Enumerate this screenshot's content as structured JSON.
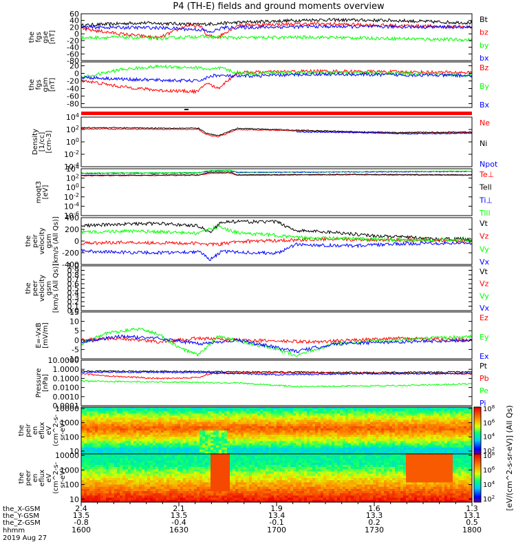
{
  "chart_data": {
    "type": "line",
    "title": "P4 (TH-E) fields and ground moments overview",
    "colors": {
      "black": "#000000",
      "red": "#ff0000",
      "green": "#00ff00",
      "blue": "#0000ff"
    },
    "x_ticks": {
      "hhmm": [
        "1600",
        "1630",
        "1700",
        "1730",
        "1800"
      ],
      "the_X-GSM": [
        "2.4",
        "2.1",
        "1.9",
        "1.6",
        "1.3"
      ],
      "the_Y-GSM": [
        "13.5",
        "13.5",
        "13.4",
        "13.3",
        "13.1"
      ],
      "the_Z-GSM": [
        "-0.8",
        "-0.4",
        "-0.1",
        "0.2",
        "0.5"
      ]
    },
    "x_row_labels": [
      "the_X-GSM",
      "the_Y-GSM",
      "the_Z-GSM",
      "hhmm"
    ],
    "date": "2019 Aug 27",
    "panels": [
      {
        "id": "fgs_gse",
        "ylabel": [
          "the",
          "fgs",
          "gse",
          "[nT]"
        ],
        "scale": "linear",
        "ylim": [
          -80,
          60
        ],
        "ticks": [
          "60",
          "40",
          "20",
          "0",
          "-20",
          "-40",
          "-60",
          "-80"
        ],
        "tick_values": [
          60,
          40,
          20,
          0,
          -20,
          -40,
          -60,
          -80
        ],
        "series": [
          {
            "name": "Bt",
            "color": "black",
            "segments": [
              [
                0,
                25,
                0.05,
                28,
                0.15,
                33,
                0.25,
                30,
                0.3,
                28,
                0.42,
                35,
                0.6,
                42,
                0.8,
                40,
                0.9,
                36,
                1,
                33
              ]
            ]
          },
          {
            "name": "bz",
            "color": "red",
            "segments": [
              [
                0,
                15,
                0.1,
                0,
                0.2,
                -12,
                0.27,
                25,
                0.31,
                22,
                0.32,
                -5,
                0.35,
                -10,
                0.4,
                26,
                0.6,
                30,
                0.8,
                25,
                1,
                20
              ]
            ]
          },
          {
            "name": "by",
            "color": "green",
            "segments": [
              [
                0,
                -12,
                0.1,
                -10,
                0.2,
                -14,
                0.3,
                -8,
                0.4,
                -12,
                0.6,
                -10,
                0.8,
                -14,
                1,
                -18
              ]
            ]
          },
          {
            "name": "bx",
            "color": "blue",
            "segments": [
              [
                0,
                20,
                0.2,
                18,
                0.31,
                12,
                0.33,
                4,
                0.36,
                18,
                0.6,
                22,
                1,
                20
              ]
            ]
          }
        ]
      },
      {
        "id": "fgs_gsm",
        "ylabel": [
          "the",
          "fgs",
          "gsm",
          "[nT]"
        ],
        "scale": "linear",
        "ylim": [
          -90,
          30
        ],
        "ticks": [
          "20",
          "0",
          "-20",
          "-40",
          "-60",
          "-80"
        ],
        "tick_values": [
          20,
          0,
          -20,
          -40,
          -60,
          -80
        ],
        "series": [
          {
            "name": "Bz",
            "color": "red",
            "segments": [
              [
                0,
                -18,
                0.1,
                -35,
                0.2,
                -45,
                0.3,
                -48,
                0.32,
                -25,
                0.35,
                -40,
                0.4,
                2,
                0.6,
                6,
                0.8,
                4,
                1,
                2
              ]
            ]
          },
          {
            "name": "By",
            "color": "green",
            "segments": [
              [
                0,
                -12,
                0.1,
                10,
                0.2,
                18,
                0.3,
                15,
                0.33,
                10,
                0.36,
                14,
                0.4,
                0,
                0.6,
                2,
                0.8,
                0,
                1,
                -5
              ]
            ]
          },
          {
            "name": "Bx",
            "color": "blue",
            "segments": [
              [
                0,
                -10,
                0.1,
                -15,
                0.2,
                -18,
                0.3,
                -20,
                0.34,
                -5,
                0.4,
                -8,
                0.6,
                -2,
                0.8,
                -4,
                1,
                -6
              ]
            ]
          }
        ]
      },
      {
        "id": "density",
        "ylabel": [
          "Density",
          "[1/cc]",
          "[cm-3]"
        ],
        "scale": "log",
        "ylim": [
          -4,
          4
        ],
        "ticks": [
          "10^4",
          "10^2",
          "10^0",
          "10^-2",
          "10^-4"
        ],
        "tick_values": [
          4,
          2,
          0,
          -2,
          -4
        ],
        "series": [
          {
            "name": "Ne",
            "color": "red",
            "segments": [
              [
                0,
                2.1,
                0.3,
                2.0,
                0.32,
                1.2,
                0.35,
                0.8,
                0.38,
                1.5,
                0.4,
                2.0,
                0.6,
                1.7,
                0.8,
                1.4,
                1,
                1.5
              ]
            ]
          },
          {
            "name": "Ni",
            "color": "black",
            "segments": [
              [
                0,
                2.3,
                0.3,
                2.2,
                0.32,
                1.4,
                0.35,
                1.0,
                0.38,
                1.7,
                0.4,
                2.2,
                0.6,
                1.8,
                0.8,
                1.5,
                1,
                1.6
              ]
            ]
          },
          {
            "name": "Npot",
            "color": "blue",
            "segments": [
              [
                0.55,
                1.6,
                0.7,
                1.5,
                0.85,
                1.3,
                1,
                1.4
              ]
            ]
          }
        ]
      },
      {
        "id": "temperature",
        "ylabel": [
          "moqt3",
          "[eV]"
        ],
        "scale": "log",
        "ylim": [
          -6,
          4
        ],
        "ticks": [
          "10^4",
          "10^2",
          "10^0",
          "10^-2",
          "10^-4",
          "10^-6"
        ],
        "tick_values": [
          4,
          2,
          0,
          -2,
          -4,
          -6
        ],
        "series": [
          {
            "name": "Te⊥",
            "color": "red",
            "segments": [
              [
                0,
                2.5,
                0.3,
                2.6,
                0.33,
                3.0,
                0.38,
                3.1,
                0.4,
                2.6,
                0.7,
                2.7,
                1,
                2.6
              ]
            ]
          },
          {
            "name": "Tell",
            "color": "black",
            "segments": [
              [
                0,
                2.6,
                0.3,
                2.7,
                0.33,
                3.2,
                0.38,
                3.3,
                0.4,
                2.7,
                0.7,
                2.8,
                1,
                2.7
              ]
            ]
          },
          {
            "name": "Ti⊥",
            "color": "blue",
            "segments": [
              [
                0,
                3.0,
                0.3,
                3.1,
                0.33,
                3.5,
                0.38,
                3.6,
                0.4,
                3.2,
                0.7,
                3.3,
                1,
                3.4
              ]
            ]
          },
          {
            "name": "Till",
            "color": "green",
            "segments": [
              [
                0,
                3.1,
                0.3,
                3.2,
                0.33,
                3.6,
                0.38,
                3.7,
                0.4,
                3.3,
                0.7,
                3.4,
                1,
                3.5
              ]
            ]
          }
        ]
      },
      {
        "id": "peir_velocity",
        "ylabel": [
          "the",
          "peir",
          "velocity",
          "gsm",
          "[km/s (All Qs)]"
        ],
        "scale": "linear",
        "ylim": [
          -400,
          400
        ],
        "ticks": [
          "400",
          "200",
          "0",
          "-200",
          "-400"
        ],
        "tick_values": [
          400,
          200,
          0,
          -200,
          -400
        ],
        "series": [
          {
            "name": "Vt",
            "color": "black",
            "segments": [
              [
                0,
                260,
                0.1,
                290,
                0.2,
                300,
                0.3,
                260,
                0.33,
                150,
                0.36,
                330,
                0.5,
                330,
                0.55,
                180,
                0.65,
                150,
                0.75,
                90,
                0.85,
                60,
                0.9,
                30,
                1,
                40
              ]
            ]
          },
          {
            "name": "Vz",
            "color": "red",
            "segments": [
              [
                0,
                -40,
                0.1,
                -20,
                0.2,
                -30,
                0.3,
                -40,
                0.35,
                -60,
                0.4,
                -10,
                0.6,
                30,
                0.8,
                20,
                1,
                0
              ]
            ]
          },
          {
            "name": "Vy",
            "color": "green",
            "segments": [
              [
                0,
                150,
                0.1,
                170,
                0.2,
                160,
                0.3,
                130,
                0.35,
                250,
                0.4,
                140,
                0.5,
                100,
                0.55,
                60,
                0.7,
                40,
                0.9,
                10,
                1,
                20
              ]
            ]
          },
          {
            "name": "Vx",
            "color": "blue",
            "segments": [
              [
                0,
                -170,
                0.1,
                -190,
                0.2,
                -200,
                0.3,
                -180,
                0.33,
                -310,
                0.36,
                -180,
                0.5,
                -210,
                0.55,
                -60,
                0.7,
                -80,
                0.85,
                -40,
                1,
                -30
              ]
            ]
          }
        ]
      },
      {
        "id": "peer_velocity",
        "ylabel": [
          "the",
          "peer",
          "velocity",
          "gsm",
          "[km/s (All Qs)]"
        ],
        "scale": "linear",
        "ylim": [
          0,
          1
        ],
        "ticks": [
          "1.0",
          "0.9",
          "0.8",
          "0.7",
          "0.6",
          "0.5",
          "0.4",
          "0.3",
          "0.2",
          "0.1",
          "0.0"
        ],
        "tick_values": [
          1,
          0.9,
          0.8,
          0.7,
          0.6,
          0.5,
          0.4,
          0.3,
          0.2,
          0.1,
          0
        ],
        "series": [
          {
            "name": "Vt",
            "color": "black",
            "segments": []
          },
          {
            "name": "Vz",
            "color": "red",
            "segments": []
          },
          {
            "name": "Vy",
            "color": "green",
            "segments": []
          },
          {
            "name": "Vx",
            "color": "blue",
            "segments": []
          }
        ]
      },
      {
        "id": "efield",
        "ylabel": [
          "E=-VxB",
          "[mV/m]"
        ],
        "scale": "linear",
        "ylim": [
          -10,
          15
        ],
        "ticks": [
          "15",
          "10",
          "5",
          "0",
          "-5",
          "-10"
        ],
        "tick_values": [
          15,
          10,
          5,
          0,
          -5,
          -10
        ],
        "series": [
          {
            "name": "Ez",
            "color": "red",
            "segments": [
              [
                0,
                0,
                0.1,
                1,
                0.2,
                -1,
                0.3,
                1,
                0.4,
                0,
                0.6,
                -1,
                0.8,
                1,
                1,
                0
              ]
            ]
          },
          {
            "name": "Ey",
            "color": "green",
            "segments": [
              [
                0,
                -2,
                0.07,
                4,
                0.15,
                6,
                0.2,
                3,
                0.25,
                -4,
                0.3,
                -8,
                0.35,
                2,
                0.5,
                -5,
                0.55,
                -8,
                0.65,
                -2,
                0.8,
                0,
                1,
                2
              ]
            ]
          },
          {
            "name": "Ex",
            "color": "blue",
            "segments": [
              [
                0,
                -1,
                0.1,
                2,
                0.2,
                1,
                0.3,
                -2,
                0.4,
                0,
                0.5,
                -4,
                0.55,
                -6,
                0.65,
                -2,
                0.8,
                -1,
                1,
                0
              ]
            ]
          }
        ]
      },
      {
        "id": "pressure",
        "ylabel": [
          "Pressure",
          "[nPa]"
        ],
        "scale": "log",
        "ylim": [
          -4,
          1
        ],
        "ticks": [
          "10.0000",
          "1.0000",
          "0.1000",
          "0.0100",
          "0.0010",
          "0.0001"
        ],
        "tick_values": [
          1,
          0,
          -1,
          -2,
          -3,
          -4
        ],
        "series": [
          {
            "name": "Pt",
            "color": "black",
            "segments": [
              [
                0,
                -0.2,
                0.3,
                -0.25,
                0.5,
                -0.3,
                0.7,
                -0.35,
                1,
                -0.3
              ]
            ]
          },
          {
            "name": "Pb",
            "color": "red",
            "segments": [
              [
                0,
                -0.5,
                0.1,
                -0.8,
                0.2,
                -1.0,
                0.3,
                -0.9,
                0.33,
                -0.5,
                0.4,
                -0.4,
                0.6,
                -0.4,
                1,
                -0.5
              ]
            ]
          },
          {
            "name": "Pe",
            "color": "green",
            "segments": [
              [
                0,
                -1.3,
                0.2,
                -1.4,
                0.4,
                -1.5,
                0.55,
                -1.9,
                0.8,
                -1.8,
                1,
                -1.6
              ]
            ]
          },
          {
            "name": "Pi",
            "color": "blue",
            "segments": [
              [
                0,
                -0.3,
                0.3,
                -0.35,
                0.5,
                -0.6,
                0.7,
                -0.5,
                1,
                -0.45
              ]
            ]
          }
        ]
      },
      {
        "id": "peir_eflux",
        "type": "heatmap",
        "ylabel": [
          "the",
          "peir",
          "en",
          "eflux",
          "eV",
          "(cm^2-s-",
          "sr-eV)"
        ],
        "scale": "log",
        "ylim": [
          0.8,
          4.1
        ],
        "ticks": [
          "10000",
          "1000",
          "100",
          "10"
        ],
        "tick_values": [
          4,
          3,
          2,
          1
        ],
        "colorbar": {
          "ticks": [
            "10^8",
            "10^6",
            "10^4",
            "10^2"
          ],
          "tick_values": [
            8,
            6,
            4,
            2
          ],
          "vmin": 1.5,
          "vmax": 8.2
        }
      },
      {
        "id": "peer_eflux",
        "type": "heatmap",
        "ylabel": [
          "the",
          "peer",
          "en",
          "eflux",
          "eV",
          "(cm^2-s-",
          "sr-eV)"
        ],
        "scale": "log",
        "ylim": [
          0.8,
          4.1
        ],
        "ticks": [
          "10000",
          "1000",
          "100",
          "10"
        ],
        "tick_values": [
          4,
          3,
          2,
          1
        ],
        "colorbar": {
          "ticks": [
            "10^8",
            "10^6",
            "10^4",
            "10^2"
          ],
          "tick_values": [
            8,
            6,
            4,
            2
          ],
          "vmin": 1.5,
          "vmax": 8.2
        }
      }
    ],
    "colorbar_label": "[eV/(cm^2-s-sr-eV)] (All Qs)"
  }
}
